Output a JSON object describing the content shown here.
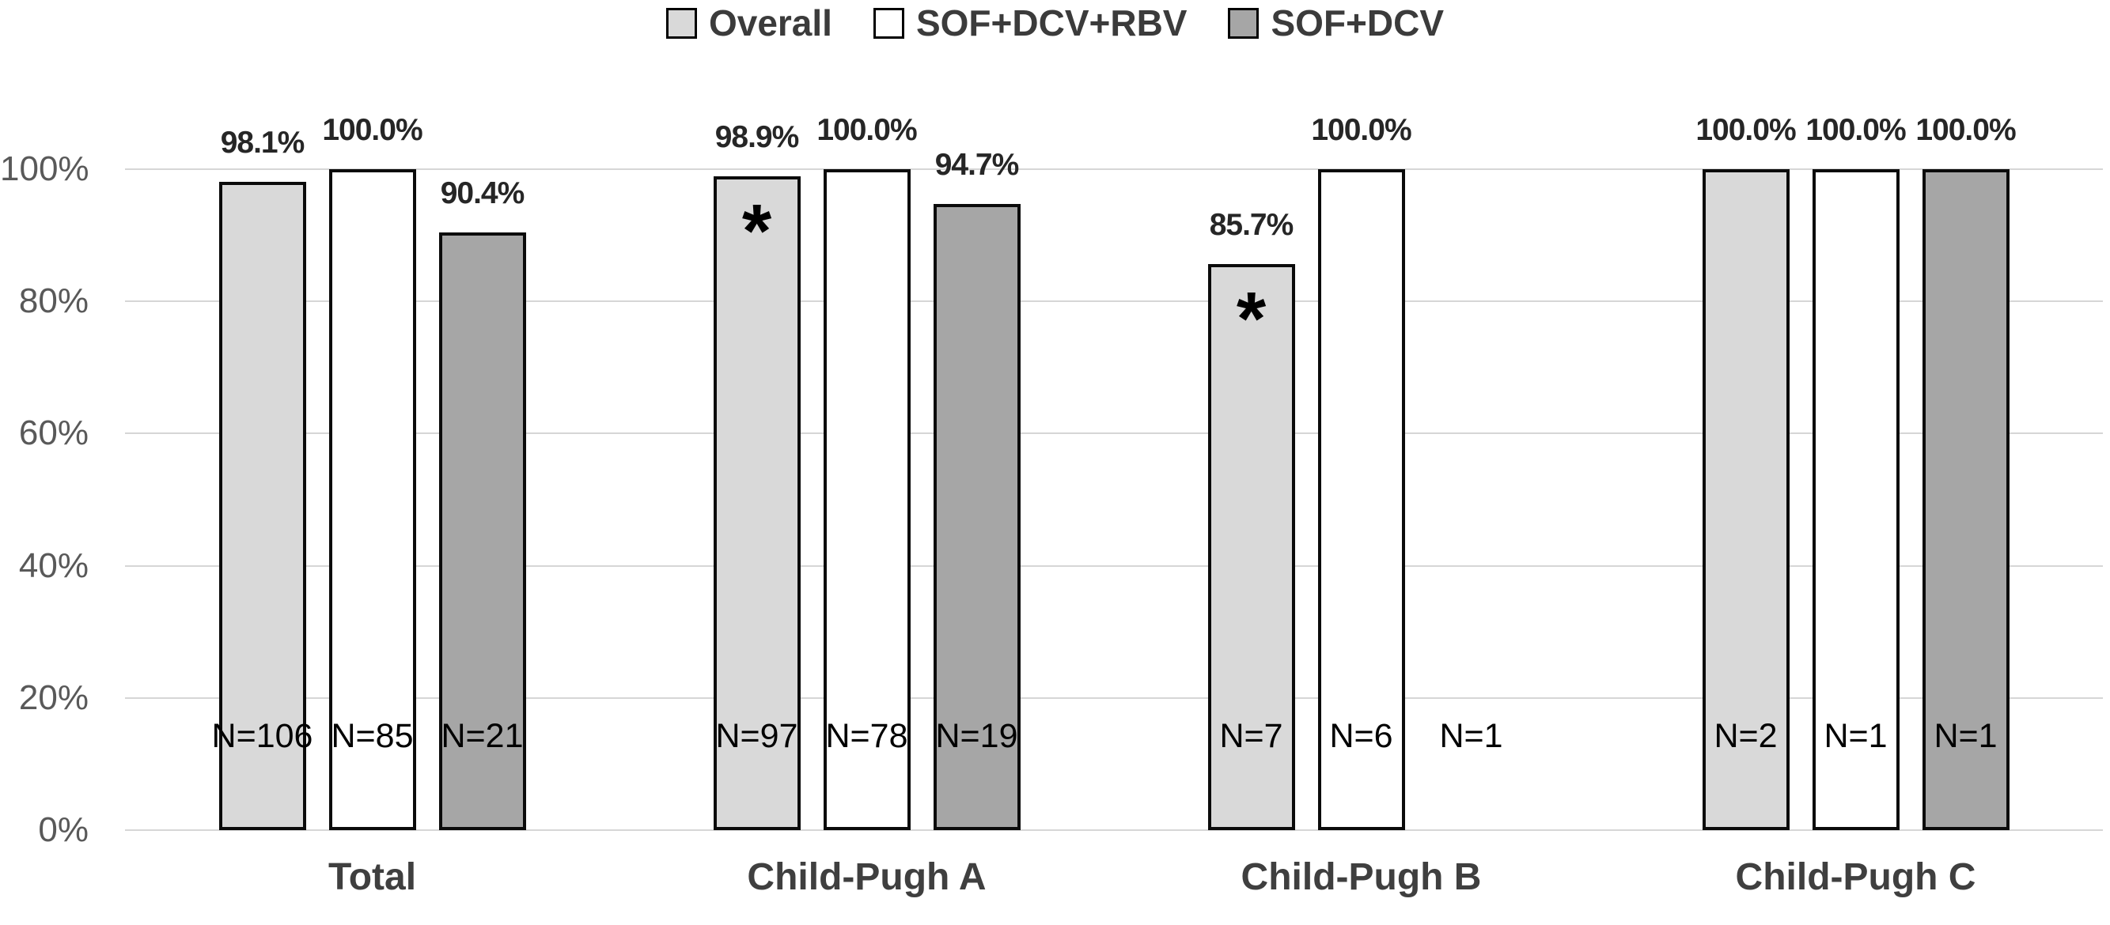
{
  "colors": {
    "background": "#ffffff",
    "bar_outline": "#000000",
    "gridline": "#d6d6d6",
    "axis_text": "#595959",
    "value_label_text": "#262626",
    "n_label_text": "#000000",
    "category_text": "#3f3f3f",
    "legend_text": "#3b3b3b",
    "series_overall": "#d9d9d9",
    "series_sof_dcv_rbv": "#ffffff",
    "series_sof_dcv": "#a6a6a6"
  },
  "legend": {
    "items": [
      {
        "label": "Overall",
        "color": "#d9d9d9"
      },
      {
        "label": "SOF+DCV+RBV",
        "color": "#ffffff"
      },
      {
        "label": "SOF+DCV",
        "color": "#a6a6a6"
      }
    ]
  },
  "chart_data": {
    "type": "bar",
    "title": "",
    "xlabel": "",
    "ylabel": "",
    "ylim": [
      0,
      100
    ],
    "grid": true,
    "legend_position": "top",
    "significance_marker": "*",
    "yticks": [
      {
        "value": 0,
        "label": "0%"
      },
      {
        "value": 20,
        "label": "20%"
      },
      {
        "value": 40,
        "label": "40%"
      },
      {
        "value": 60,
        "label": "60%"
      },
      {
        "value": 80,
        "label": "80%"
      },
      {
        "value": 100,
        "label": "100%"
      }
    ],
    "categories": [
      "Total",
      "Child-Pugh A",
      "Child-Pugh B",
      "Child-Pugh C"
    ],
    "series": [
      {
        "name": "Overall",
        "color": "#d9d9d9",
        "values": [
          98.1,
          98.9,
          85.7,
          100.0
        ],
        "value_labels": [
          "98.1%",
          "98.9%",
          "85.7%",
          "100.0%"
        ],
        "n_labels": [
          "N=106",
          "N=97",
          "N=7",
          "N=2"
        ],
        "significance": [
          false,
          true,
          true,
          false
        ]
      },
      {
        "name": "SOF+DCV+RBV",
        "color": "#ffffff",
        "values": [
          100.0,
          100.0,
          100.0,
          100.0
        ],
        "value_labels": [
          "100.0%",
          "100.0%",
          "100.0%",
          "100.0%"
        ],
        "n_labels": [
          "N=85",
          "N=78",
          "N=6",
          "N=1"
        ],
        "significance": [
          false,
          false,
          false,
          false
        ]
      },
      {
        "name": "SOF+DCV",
        "color": "#a6a6a6",
        "values": [
          90.4,
          94.7,
          null,
          100.0
        ],
        "value_labels": [
          "90.4%",
          "94.7%",
          "",
          "100.0%"
        ],
        "n_labels": [
          "N=21",
          "N=19",
          "N=1",
          "N=1"
        ],
        "significance": [
          false,
          false,
          false,
          false
        ]
      }
    ]
  }
}
